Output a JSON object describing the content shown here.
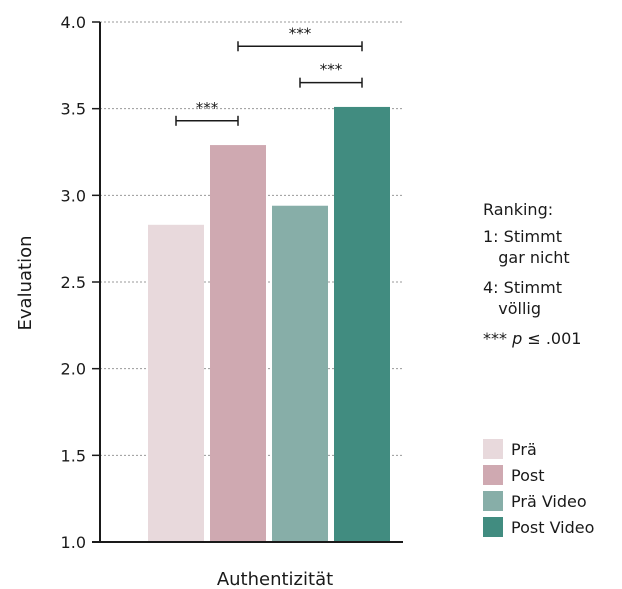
{
  "chart_data": {
    "type": "bar",
    "xlabel": "Authentizität",
    "ylabel": "Evaluation",
    "ylim": [
      1.0,
      4.0
    ],
    "yticks": [
      "1.0",
      "1.5",
      "2.0",
      "2.5",
      "3.0",
      "3.5",
      "4.0"
    ],
    "grid": "horizontal dotted",
    "series": [
      {
        "name": "Prä",
        "value": 2.83,
        "color": "#e8d9dc"
      },
      {
        "name": "Post",
        "value": 3.29,
        "color": "#cfa9b1"
      },
      {
        "name": "Prä Video",
        "value": 2.94,
        "color": "#87aea8"
      },
      {
        "name": "Post Video",
        "value": 3.51,
        "color": "#418c80"
      }
    ],
    "significance": [
      {
        "from": "Prä",
        "to": "Post",
        "label": "***"
      },
      {
        "from": "Prä Video",
        "to": "Post Video",
        "label": "***"
      },
      {
        "from": "Post",
        "to": "Post Video",
        "label": "***"
      }
    ]
  },
  "notes": {
    "ranking_title": "Ranking:",
    "ranking_1": "1: Stimmt\n   gar nicht",
    "ranking_4": "4: Stimmt\n   völlig",
    "pvalue_stars": "***",
    "pvalue_p": "p",
    "pvalue_rest": " ≤ .001"
  }
}
